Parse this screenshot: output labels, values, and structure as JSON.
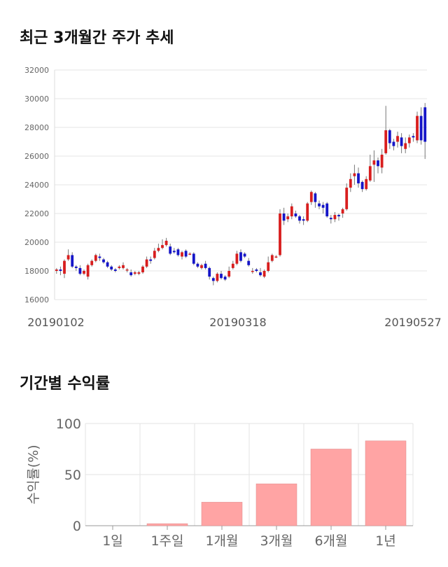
{
  "section1": {
    "title": "최근 3개월간 주가 추세"
  },
  "section2": {
    "title": "기간별 수익률"
  },
  "chart_data": [
    {
      "type": "candlestick",
      "y_ticks": [
        16000,
        18000,
        20000,
        22000,
        24000,
        26000,
        28000,
        30000,
        32000
      ],
      "ylim": [
        16000,
        32000
      ],
      "x_tick_labels": [
        "20190102",
        "20190318",
        "20190527"
      ],
      "grid": true,
      "series": [
        [
          18000,
          18100,
          17800,
          18200
        ],
        [
          18100,
          18000,
          17700,
          18300
        ],
        [
          17800,
          18700,
          17500,
          18800
        ],
        [
          18800,
          19100,
          18700,
          19500
        ],
        [
          19100,
          18300,
          18200,
          19300
        ],
        [
          18300,
          18200,
          18000,
          18400
        ],
        [
          18200,
          17800,
          17700,
          18400
        ],
        [
          17800,
          18000,
          17700,
          18100
        ],
        [
          17600,
          18400,
          17400,
          18500
        ],
        [
          18400,
          18700,
          18300,
          18800
        ],
        [
          18700,
          19100,
          18600,
          19200
        ],
        [
          19000,
          18900,
          18700,
          19200
        ],
        [
          18800,
          18600,
          18500,
          18900
        ],
        [
          18600,
          18300,
          18200,
          18700
        ],
        [
          18300,
          18100,
          18000,
          18400
        ],
        [
          18100,
          18000,
          17900,
          18200
        ],
        [
          18200,
          18300,
          18100,
          18400
        ],
        [
          18200,
          18400,
          18100,
          18600
        ],
        [
          18100,
          18100,
          17900,
          18200
        ],
        [
          17900,
          17700,
          17600,
          18100
        ],
        [
          17800,
          17900,
          17700,
          18000
        ],
        [
          17800,
          17900,
          17700,
          18000
        ],
        [
          17900,
          18300,
          17800,
          18400
        ],
        [
          18300,
          18800,
          18200,
          19000
        ],
        [
          18800,
          18700,
          18500,
          19000
        ],
        [
          18900,
          19400,
          18800,
          19600
        ],
        [
          19400,
          19600,
          19300,
          19900
        ],
        [
          19600,
          19800,
          19500,
          20200
        ],
        [
          19800,
          20100,
          19700,
          20300
        ],
        [
          19700,
          19200,
          19100,
          19900
        ],
        [
          19400,
          19300,
          19200,
          19600
        ],
        [
          19500,
          19100,
          19000,
          19600
        ],
        [
          19000,
          19300,
          18800,
          19400
        ],
        [
          19400,
          19000,
          18900,
          19500
        ],
        [
          19200,
          19200,
          19100,
          19300
        ],
        [
          19200,
          18500,
          18400,
          19300
        ],
        [
          18500,
          18300,
          18200,
          18600
        ],
        [
          18200,
          18400,
          18100,
          18500
        ],
        [
          18500,
          18200,
          18100,
          18700
        ],
        [
          18200,
          17600,
          17400,
          18300
        ],
        [
          17500,
          17300,
          17000,
          17600
        ],
        [
          17300,
          17800,
          17200,
          17900
        ],
        [
          17800,
          17500,
          17400,
          18000
        ],
        [
          17600,
          17400,
          17300,
          17700
        ],
        [
          17600,
          18000,
          17500,
          18300
        ],
        [
          18200,
          18500,
          18100,
          18700
        ],
        [
          18500,
          19200,
          18400,
          19400
        ],
        [
          19300,
          18700,
          18600,
          19500
        ],
        [
          19200,
          19000,
          18900,
          19300
        ],
        [
          18700,
          18400,
          18300,
          18900
        ],
        [
          18000,
          18000,
          17800,
          18200
        ],
        [
          18100,
          18000,
          17900,
          18200
        ],
        [
          17900,
          17700,
          17600,
          18200
        ],
        [
          17600,
          18000,
          17500,
          18100
        ],
        [
          18000,
          18600,
          17900,
          19000
        ],
        [
          18700,
          19100,
          18600,
          19200
        ],
        [
          19000,
          19000,
          18900,
          19100
        ],
        [
          19100,
          22000,
          19000,
          22300
        ],
        [
          22000,
          21500,
          21200,
          22400
        ],
        [
          21600,
          21800,
          21400,
          22000
        ],
        [
          21800,
          22500,
          21600,
          22700
        ],
        [
          22000,
          21800,
          21700,
          22200
        ],
        [
          21800,
          21500,
          21300,
          21900
        ],
        [
          21600,
          21500,
          21200,
          21800
        ],
        [
          21500,
          22700,
          21400,
          22800
        ],
        [
          22800,
          23500,
          22600,
          23600
        ],
        [
          23400,
          22800,
          22400,
          23500
        ],
        [
          22700,
          22500,
          22300,
          22900
        ],
        [
          22600,
          22400,
          22000,
          22800
        ],
        [
          22700,
          21800,
          21700,
          22800
        ],
        [
          21700,
          21600,
          21300,
          21900
        ],
        [
          21600,
          21900,
          21400,
          22100
        ],
        [
          21900,
          21800,
          21500,
          22000
        ],
        [
          22000,
          22300,
          21700,
          22400
        ],
        [
          22300,
          23800,
          22200,
          24100
        ],
        [
          23800,
          24400,
          23500,
          24800
        ],
        [
          24600,
          24800,
          24000,
          25400
        ],
        [
          24800,
          24100,
          23800,
          25200
        ],
        [
          24200,
          23700,
          23500,
          24300
        ],
        [
          23700,
          24400,
          23600,
          24600
        ],
        [
          24300,
          25300,
          24200,
          26100
        ],
        [
          25400,
          25700,
          24200,
          26400
        ],
        [
          25700,
          25300,
          24800,
          25900
        ],
        [
          25200,
          26100,
          24800,
          26500
        ],
        [
          26200,
          27800,
          26100,
          29500
        ],
        [
          27800,
          26900,
          26500,
          27900
        ],
        [
          27000,
          26700,
          26400,
          27200
        ],
        [
          27000,
          27400,
          26600,
          27700
        ],
        [
          27300,
          26700,
          26200,
          27600
        ],
        [
          26500,
          26900,
          26200,
          27300
        ],
        [
          26900,
          27300,
          26600,
          27500
        ],
        [
          27400,
          27300,
          27000,
          27600
        ],
        [
          27100,
          28800,
          26900,
          29100
        ],
        [
          28800,
          27100,
          26800,
          29400
        ],
        [
          29400,
          27000,
          25800,
          29700
        ]
      ]
    },
    {
      "type": "bar",
      "categories": [
        "1일",
        "1주일",
        "1개월",
        "3개월",
        "6개월",
        "1년"
      ],
      "values": [
        0,
        2,
        23,
        41,
        75,
        83
      ],
      "ylabel": "수익률(%)",
      "y_ticks": [
        0,
        50,
        100
      ],
      "ylim": [
        0,
        100
      ],
      "color": "#ffa4a4"
    }
  ]
}
